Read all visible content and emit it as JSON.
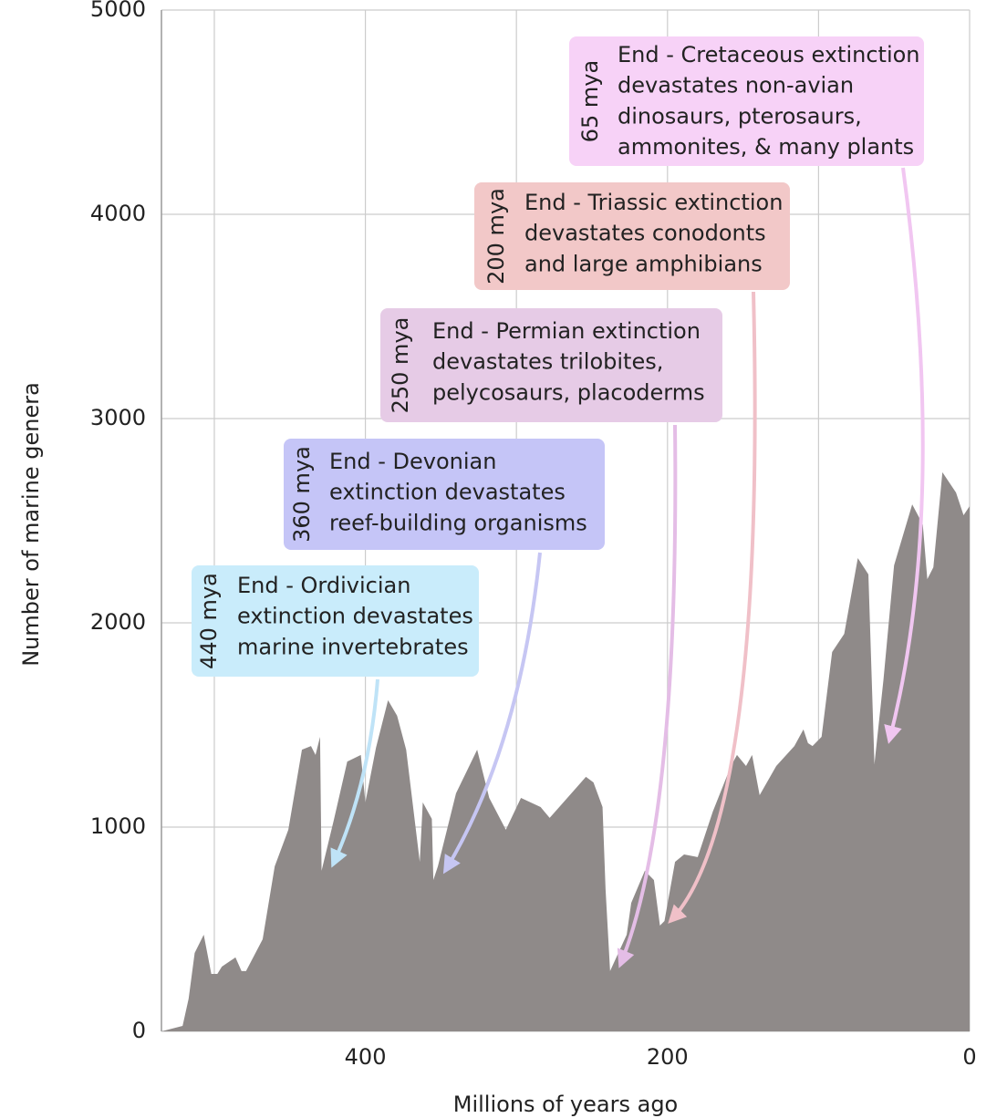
{
  "chart_data": {
    "type": "area",
    "xlabel": "Millions of years ago",
    "ylabel": "Number of marine genera",
    "x": [
      535,
      521,
      517,
      513,
      507,
      502,
      498,
      495,
      486,
      482,
      479,
      468,
      460,
      451,
      442,
      436,
      433,
      430,
      429,
      421,
      412,
      403,
      400,
      393,
      385,
      379,
      373,
      364,
      362,
      356,
      355,
      352,
      340,
      326,
      318,
      307,
      297,
      284,
      278,
      254,
      249,
      243,
      241,
      238,
      227,
      224,
      215,
      209,
      205,
      202,
      195,
      189,
      180,
      170,
      158,
      154,
      148,
      144,
      139,
      128,
      116,
      110,
      107,
      104,
      98,
      91,
      83,
      74,
      67,
      63,
      57,
      50,
      38,
      31,
      28,
      24,
      18,
      9,
      4,
      0
    ],
    "values": [
      0,
      27,
      160,
      384,
      473,
      281,
      281,
      317,
      362,
      295,
      295,
      451,
      808,
      987,
      1379,
      1397,
      1353,
      1442,
      786,
      1031,
      1321,
      1353,
      1121,
      1388,
      1621,
      1545,
      1379,
      830,
      1121,
      1040,
      741,
      808,
      1165,
      1379,
      1143,
      987,
      1143,
      1098,
      1045,
      1246,
      1219,
      1098,
      696,
      295,
      473,
      629,
      786,
      741,
      518,
      540,
      830,
      866,
      853,
      1076,
      1299,
      1353,
      1299,
      1353,
      1156,
      1299,
      1397,
      1478,
      1411,
      1397,
      1442,
      1857,
      1946,
      2317,
      2237,
      1308,
      1723,
      2281,
      2580,
      2482,
      2214,
      2272,
      2737,
      2638,
      2527,
      2571
    ],
    "color": "#8f8a89",
    "xlim": [
      535,
      0
    ],
    "xticks": [
      400,
      200,
      0
    ],
    "xgrid": [
      500,
      400,
      300,
      200,
      100,
      0
    ],
    "ylim": [
      0,
      5000
    ],
    "yticks": [
      0,
      1000,
      2000,
      3000,
      4000,
      5000
    ],
    "grid": true,
    "annotations": [
      {
        "label": "440 mya",
        "lines": [
          "End - Ordivician",
          "extinction devastates",
          "marine invertebrates"
        ],
        "fill": "#c9ecfb",
        "color": "#2b9ed8",
        "arrow": "#bfe3f7"
      },
      {
        "label": "360 mya",
        "lines": [
          "End - Devonian",
          "extinction devastates",
          "reef-building organisms"
        ],
        "fill": "#c5c5f7",
        "color": "#2a2ab0",
        "arrow": "#c6c6f3"
      },
      {
        "label": "250 mya",
        "lines": [
          "End - Permian extinction",
          "devastates trilobites,",
          "pelycosaurs, placoderms"
        ],
        "fill": "#e6cbe6",
        "color": "#8b2a8b",
        "arrow": "#e4bde6"
      },
      {
        "label": "200 mya",
        "lines": [
          "End - Triassic extinction",
          "devastates conodonts",
          "and large amphibians"
        ],
        "fill": "#f2c8c8",
        "color": "#b01c2a",
        "arrow": "#f0c0c8"
      },
      {
        "label": "65 mya",
        "lines": [
          "End - Cretaceous extinction",
          "devastates non-avian",
          "dinosaurs, pterosaurs,",
          "ammonites, & many plants"
        ],
        "fill": "#f7d2f7",
        "color": "#b42ab4",
        "arrow": "#f1c6f1"
      }
    ]
  }
}
